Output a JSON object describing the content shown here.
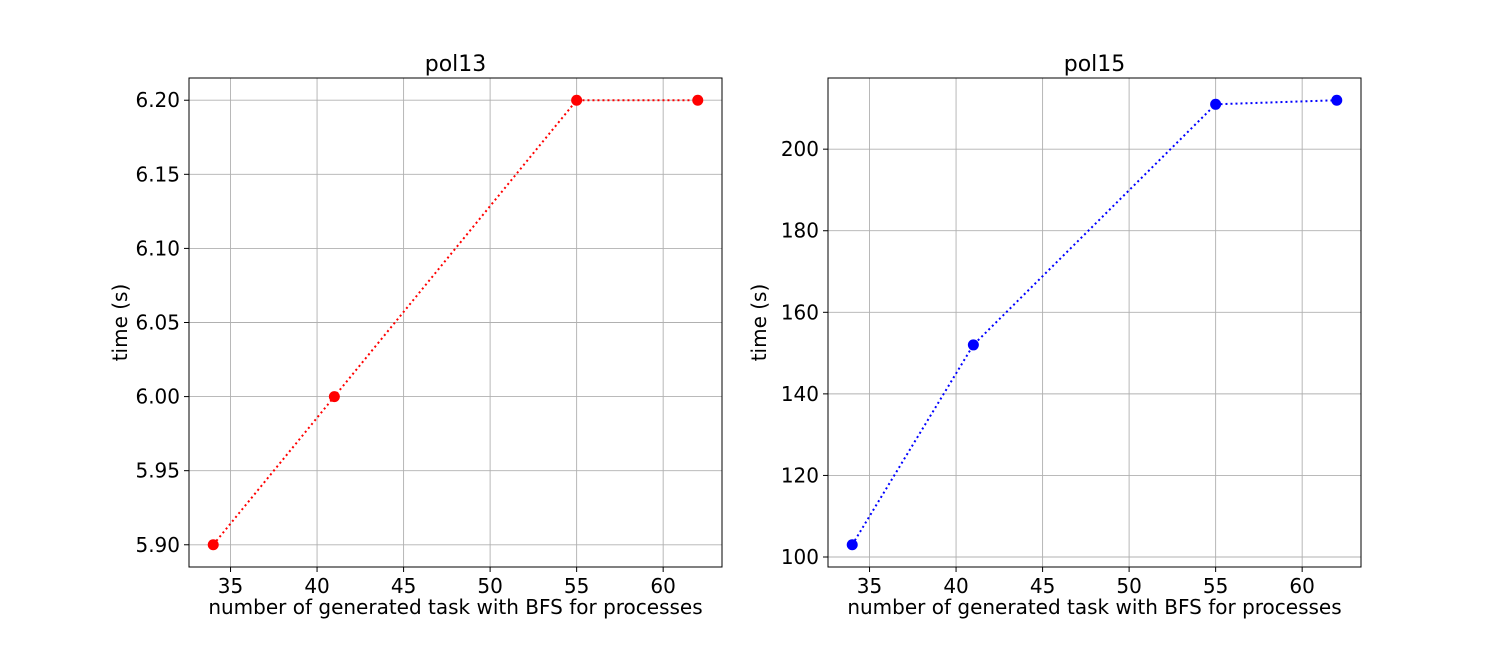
{
  "chart_data": [
    {
      "type": "line",
      "title": "pol13",
      "xlabel": "number of generated task with BFS for processes",
      "ylabel": "time (s)",
      "color": "#ff0000",
      "line_style": "dotted",
      "marker": "circle",
      "grid": true,
      "x": [
        34,
        41,
        55,
        62
      ],
      "y": [
        5.9,
        6.0,
        6.2,
        6.2
      ],
      "xlim": [
        32.6,
        63.4
      ],
      "ylim": [
        5.885,
        6.215
      ],
      "xticks": [
        35,
        40,
        45,
        50,
        55,
        60
      ],
      "xtick_labels": [
        "35",
        "40",
        "45",
        "50",
        "55",
        "60"
      ],
      "yticks": [
        5.9,
        5.95,
        6.0,
        6.05,
        6.1,
        6.15,
        6.2
      ],
      "ytick_labels": [
        "5.90",
        "5.95",
        "6.00",
        "6.05",
        "6.10",
        "6.15",
        "6.20"
      ]
    },
    {
      "type": "line",
      "title": "pol15",
      "xlabel": "number of generated task with BFS for processes",
      "ylabel": "time (s)",
      "color": "#0000ff",
      "line_style": "dotted",
      "marker": "circle",
      "grid": true,
      "x": [
        34,
        41,
        55,
        62
      ],
      "y": [
        103,
        152,
        211,
        212
      ],
      "xlim": [
        32.6,
        63.4
      ],
      "ylim": [
        97.55,
        217.45
      ],
      "xticks": [
        35,
        40,
        45,
        50,
        55,
        60
      ],
      "xtick_labels": [
        "35",
        "40",
        "45",
        "50",
        "55",
        "60"
      ],
      "yticks": [
        100,
        120,
        140,
        160,
        180,
        200
      ],
      "ytick_labels": [
        "100",
        "120",
        "140",
        "160",
        "180",
        "200"
      ]
    }
  ]
}
